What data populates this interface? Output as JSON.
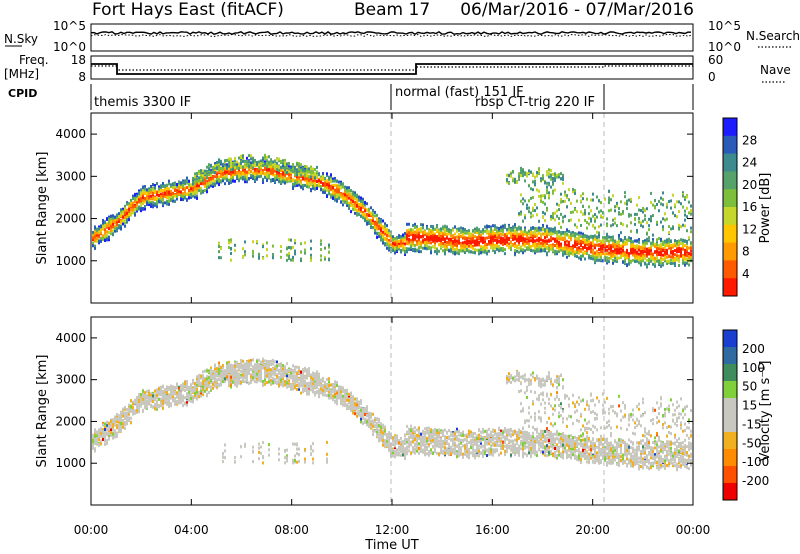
{
  "header": {
    "station": "Fort Hays East (fitACF)",
    "beam": "Beam 17",
    "date_range": "06/Mar/2016 - 07/Mar/2016"
  },
  "status_panels": {
    "nsky": {
      "label": "N.Sky",
      "left_ticks": [
        "10^5",
        "10^0"
      ],
      "right_label": "N.Search",
      "right_ticks": [
        "10^5",
        "10^0"
      ]
    },
    "freq": {
      "label_lines": [
        "Freq.",
        "[MHz]"
      ],
      "left_ticks": [
        "18",
        "8"
      ],
      "right_label": "Nave",
      "right_ticks": [
        "60",
        "0"
      ]
    },
    "cpid": {
      "label": "CPID",
      "segments": [
        {
          "label": "themis 3300 IF",
          "start": 0,
          "end": 12
        },
        {
          "label": "normal (fast) 151 IF",
          "start": 12,
          "end": 24
        },
        {
          "label": "rbsp CT-trig 220 IF",
          "start": 12,
          "end": 24
        }
      ]
    }
  },
  "chart_data": [
    {
      "type": "heatmap",
      "title": "Power",
      "ylabel": "Slant Range [km]",
      "ylim": [
        0,
        4500
      ],
      "yticks": [
        "1000",
        "2000",
        "3000",
        "4000"
      ],
      "xlim": [
        0,
        24
      ],
      "colorbar": {
        "label": "Power [dB]",
        "ticks": [
          "28",
          "24",
          "20",
          "16",
          "12",
          "8",
          "4"
        ],
        "colors": [
          "#1c1cff",
          "#2a5bb8",
          "#3d8a8f",
          "#55a26a",
          "#7dbf3c",
          "#c6d62a",
          "#ffc600",
          "#ff9a00",
          "#ff5a00",
          "#ff1a00"
        ]
      },
      "features": [
        {
          "name": "main echo band",
          "x": [
            0,
            1,
            2,
            3,
            4,
            5,
            6,
            7,
            8,
            9,
            10,
            11,
            12
          ],
          "y": [
            1500,
            1900,
            2500,
            2600,
            2700,
            3050,
            3150,
            3150,
            3000,
            2900,
            2600,
            2100,
            1400
          ]
        },
        {
          "name": "night-side band",
          "x": [
            13,
            14,
            15,
            16,
            17,
            18,
            19,
            20,
            21,
            22,
            23,
            24
          ],
          "y": [
            1550,
            1500,
            1450,
            1500,
            1500,
            1500,
            1400,
            1300,
            1250,
            1200,
            1200,
            1200
          ]
        }
      ]
    },
    {
      "type": "heatmap",
      "title": "Velocity",
      "ylabel": "Slant Range [km]",
      "ylim": [
        0,
        4500
      ],
      "yticks": [
        "1000",
        "2000",
        "3000",
        "4000"
      ],
      "xlim": [
        0,
        24
      ],
      "xticks": [
        "00:00",
        "04:00",
        "08:00",
        "12:00",
        "16:00",
        "20:00",
        "00:00"
      ],
      "xlabel": "Time UT",
      "colorbar": {
        "label": "Velocity [m s⁻¹]",
        "ticks": [
          "200",
          "100",
          "50",
          "15",
          "-15",
          "-50",
          "-100",
          "-200"
        ],
        "colors": [
          "#1a3fd0",
          "#2f6aa0",
          "#3f8c5c",
          "#7fd03a",
          "#c8c8c0",
          "#c8c8c0",
          "#f0b020",
          "#ff8c00",
          "#ff5000",
          "#ee0000"
        ]
      }
    }
  ]
}
